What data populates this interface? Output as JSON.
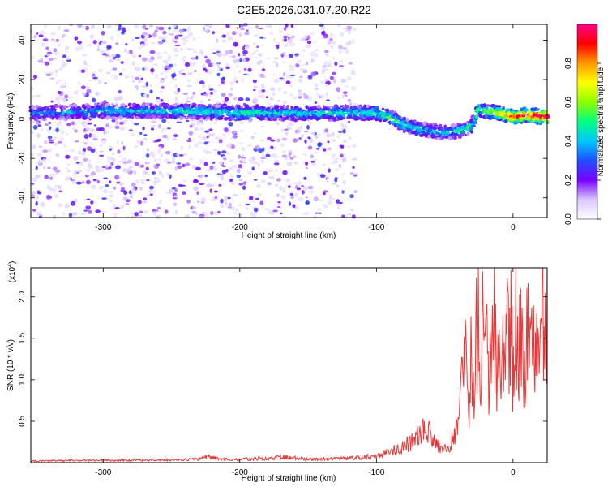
{
  "title": "C2E5.2026.031.07.20.R22",
  "chart_data": [
    {
      "type": "heatmap",
      "xlabel": "Height of straight line (km)",
      "ylabel": "Frequency (Hz)",
      "xlim": [
        -353,
        25
      ],
      "ylim": [
        -50,
        48
      ],
      "xticks": [
        -300,
        -200,
        -100,
        0
      ],
      "yticks": [
        -40,
        -20,
        0,
        20,
        40
      ],
      "colorbar": {
        "label": "Normalized spectral amplitude",
        "range": [
          0.0,
          1.0
        ],
        "ticks": [
          0.0,
          0.2,
          0.4,
          0.6,
          0.8
        ],
        "colors": [
          "#ffffff",
          "#d9c6ff",
          "#7a00ff",
          "#1f4dff",
          "#00c8ff",
          "#00ff80",
          "#8cff00",
          "#ffff00",
          "#ff9900",
          "#ff0000",
          "#ff0088"
        ]
      },
      "ridge": {
        "x": [
          -353,
          -300,
          -250,
          -200,
          -160,
          -120,
          -100,
          -90,
          -80,
          -70,
          -60,
          -50,
          -40,
          -30,
          -25,
          -20,
          -10,
          0,
          10,
          25
        ],
        "frequency": [
          3,
          4,
          4,
          3,
          3,
          3,
          3,
          1,
          -3,
          -5,
          -6,
          -7,
          -6,
          -4,
          5,
          4,
          3,
          1,
          2,
          1
        ],
        "amplitude": [
          0.35,
          0.4,
          0.45,
          0.5,
          0.45,
          0.45,
          0.5,
          0.55,
          0.5,
          0.45,
          0.4,
          0.4,
          0.45,
          0.5,
          0.55,
          0.6,
          0.75,
          0.9,
          0.95,
          1.0
        ]
      }
    },
    {
      "type": "line",
      "xlabel": "Height of straight line (km)",
      "ylabel": "SNR (10 * v/v)",
      "ylabel_multiplier": "(x10",
      "ylabel_exponent": "4",
      "multiplier_suffix": ")",
      "xlim": [
        -353,
        25
      ],
      "ylim": [
        0,
        2.35
      ],
      "xticks": [
        -300,
        -200,
        -100,
        0
      ],
      "yticks": [
        0.5,
        1.0,
        1.5,
        2.0
      ],
      "ytick_labels": [
        "0.5",
        "1.0",
        "1.5",
        "2.0"
      ],
      "series": [
        {
          "x": [
            -353,
            -300,
            -250,
            -230,
            -222,
            -215,
            -200,
            -180,
            -170,
            -150,
            -120,
            -100,
            -90,
            -80,
            -75,
            -70,
            -65,
            -60,
            -55,
            -50,
            -45,
            -40,
            -38,
            -35,
            -33,
            -30,
            -28,
            -25,
            -24,
            -22,
            -20,
            -18,
            -16,
            -14,
            -12,
            -10,
            -8,
            -6,
            -4,
            -2,
            0,
            2,
            4,
            6,
            8,
            10,
            12,
            14,
            16,
            18,
            20,
            22,
            25
          ],
          "y": [
            0.02,
            0.03,
            0.03,
            0.04,
            0.08,
            0.04,
            0.04,
            0.05,
            0.07,
            0.04,
            0.05,
            0.08,
            0.13,
            0.2,
            0.25,
            0.3,
            0.38,
            0.35,
            0.2,
            0.15,
            0.25,
            0.55,
            0.8,
            1.2,
            0.6,
            1.5,
            0.9,
            2.3,
            1.0,
            1.7,
            1.6,
            0.8,
            1.4,
            1.9,
            1.1,
            1.4,
            1.6,
            1.0,
            1.5,
            1.7,
            1.2,
            1.6,
            1.3,
            1.5,
            1.4,
            1.4,
            1.55,
            1.5,
            1.6,
            1.45,
            1.65,
            1.7,
            1.8
          ],
          "color": "#e8393a"
        }
      ]
    }
  ]
}
